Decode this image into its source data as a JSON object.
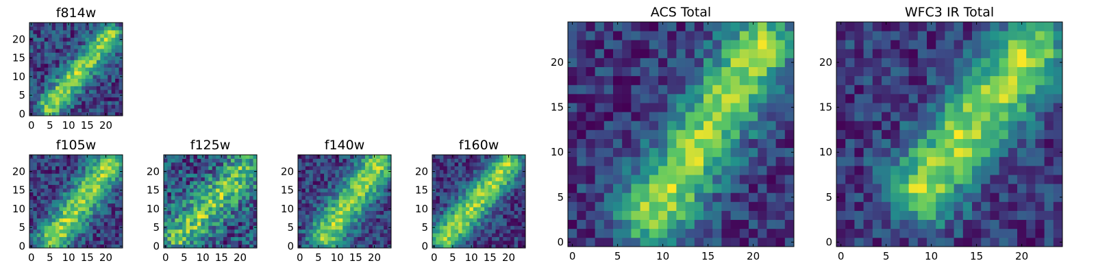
{
  "colormap": [
    "#440154",
    "#3b528b",
    "#21918c",
    "#5ec962",
    "#fde725"
  ],
  "chart_data": [
    {
      "type": "heatmap",
      "title": "f814w",
      "grid_size": 25,
      "xlim": [
        0,
        24
      ],
      "ylim": [
        0,
        24
      ],
      "xticks": [
        "0",
        "5",
        "10",
        "15",
        "20"
      ],
      "yticks": [
        "0",
        "5",
        "10",
        "15",
        "20"
      ],
      "features": [
        {
          "kind": "ridge",
          "from": [
            5,
            2
          ],
          "to": [
            21,
            21
          ],
          "peak": 1.0,
          "width": 2.4
        }
      ],
      "noise": 0.32,
      "seed": 11
    },
    {
      "type": "heatmap",
      "title": "f105w",
      "grid_size": 25,
      "xlim": [
        0,
        24
      ],
      "ylim": [
        0,
        24
      ],
      "xticks": [
        "0",
        "5",
        "10",
        "15",
        "20"
      ],
      "yticks": [
        "0",
        "5",
        "10",
        "15",
        "20"
      ],
      "features": [
        {
          "kind": "ridge",
          "from": [
            6,
            2
          ],
          "to": [
            21,
            22
          ],
          "peak": 1.0,
          "width": 3.2
        }
      ],
      "noise": 0.3,
      "seed": 23
    },
    {
      "type": "heatmap",
      "title": "f125w",
      "grid_size": 25,
      "xlim": [
        0,
        24
      ],
      "ylim": [
        0,
        24
      ],
      "xticks": [
        "0",
        "5",
        "10",
        "15",
        "20"
      ],
      "yticks": [
        "0",
        "5",
        "10",
        "15",
        "20"
      ],
      "features": [
        {
          "kind": "ridge",
          "from": [
            4,
            3
          ],
          "to": [
            21,
            20
          ],
          "peak": 0.75,
          "width": 3.5
        }
      ],
      "noise": 0.42,
      "seed": 37
    },
    {
      "type": "heatmap",
      "title": "f140w",
      "grid_size": 25,
      "xlim": [
        0,
        24
      ],
      "ylim": [
        0,
        24
      ],
      "xticks": [
        "0",
        "5",
        "10",
        "15",
        "20"
      ],
      "yticks": [
        "0",
        "5",
        "10",
        "15",
        "20"
      ],
      "features": [
        {
          "kind": "ridge",
          "from": [
            7,
            3
          ],
          "to": [
            21,
            22
          ],
          "peak": 1.0,
          "width": 3.3
        }
      ],
      "noise": 0.3,
      "seed": 41
    },
    {
      "type": "heatmap",
      "title": "f160w",
      "grid_size": 25,
      "xlim": [
        0,
        24
      ],
      "ylim": [
        0,
        24
      ],
      "xticks": [
        "0",
        "5",
        "10",
        "15",
        "20"
      ],
      "yticks": [
        "0",
        "5",
        "10",
        "15",
        "20"
      ],
      "features": [
        {
          "kind": "ridge",
          "from": [
            3,
            2
          ],
          "to": [
            20,
            22
          ],
          "peak": 1.05,
          "width": 3.0
        }
      ],
      "noise": 0.28,
      "seed": 53
    },
    {
      "type": "heatmap",
      "title": "ACS Total",
      "grid_size": 25,
      "xlim": [
        0,
        24
      ],
      "ylim": [
        0,
        24
      ],
      "xticks": [
        "0",
        "5",
        "10",
        "15",
        "20"
      ],
      "yticks": [
        "0",
        "5",
        "10",
        "15",
        "20"
      ],
      "features": [
        {
          "kind": "ridge",
          "from": [
            9,
            3
          ],
          "to": [
            21,
            22
          ],
          "peak": 1.0,
          "width": 2.8
        }
      ],
      "noise": 0.26,
      "seed": 67
    },
    {
      "type": "heatmap",
      "title": "WFC3 IR Total",
      "grid_size": 25,
      "xlim": [
        0,
        24
      ],
      "ylim": [
        0,
        24
      ],
      "xticks": [
        "0",
        "5",
        "10",
        "15",
        "20"
      ],
      "yticks": [
        "0",
        "5",
        "10",
        "15",
        "20"
      ],
      "features": [
        {
          "kind": "ridge",
          "from": [
            9,
            6
          ],
          "to": [
            21,
            21
          ],
          "peak": 1.0,
          "width": 2.8
        }
      ],
      "noise": 0.26,
      "seed": 79
    }
  ]
}
